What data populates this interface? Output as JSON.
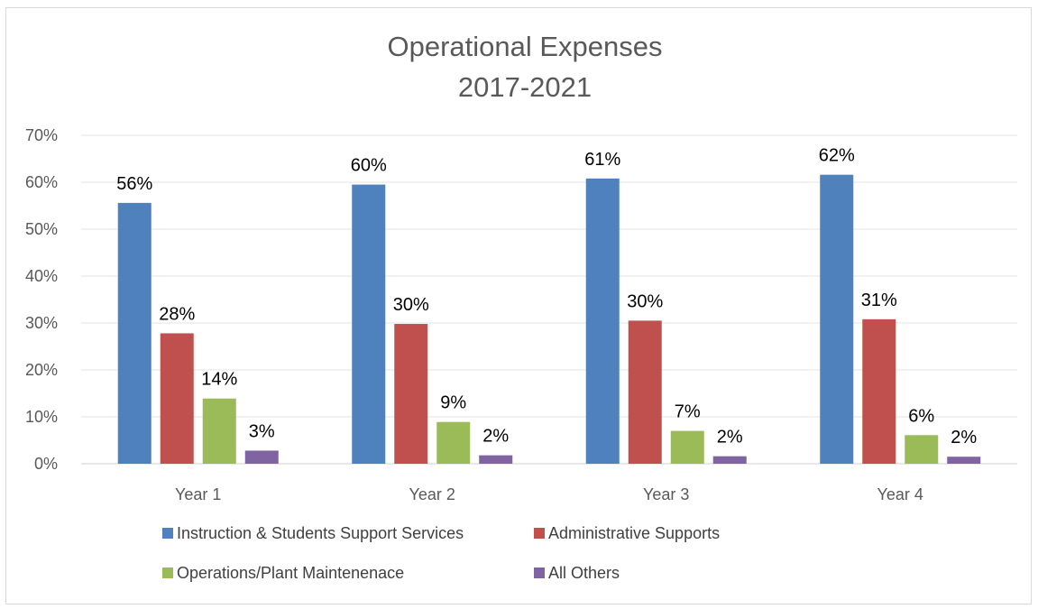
{
  "chart_data": {
    "type": "bar",
    "title": "Operational Expenses",
    "subtitle": "2017-2021",
    "xlabel": "",
    "ylabel": "",
    "categories": [
      "Year 1",
      "Year 2",
      "Year 3",
      "Year 4"
    ],
    "ylim": [
      0,
      70
    ],
    "ytick_labels": [
      "0%",
      "10%",
      "20%",
      "30%",
      "40%",
      "50%",
      "60%",
      "70%"
    ],
    "ytick_values": [
      0,
      10,
      20,
      30,
      40,
      50,
      60,
      70
    ],
    "grid": true,
    "legend_position": "bottom",
    "series": [
      {
        "name": "Instruction & Students Support Services",
        "color": "#4f81bd",
        "values": [
          55.6,
          59.5,
          60.8,
          61.6
        ],
        "labels": [
          "56%",
          "60%",
          "61%",
          "62%"
        ]
      },
      {
        "name": "Administrative Supports",
        "color": "#c0504d",
        "values": [
          27.8,
          29.8,
          30.5,
          30.8
        ],
        "labels": [
          "28%",
          "30%",
          "30%",
          "31%"
        ]
      },
      {
        "name": "Operations/Plant Maintenenace",
        "color": "#9bbb59",
        "values": [
          13.9,
          8.9,
          7.0,
          6.1
        ],
        "labels": [
          "14%",
          "9%",
          "7%",
          "6%"
        ]
      },
      {
        "name": "All Others",
        "color": "#8064a2",
        "values": [
          2.8,
          1.8,
          1.6,
          1.5
        ],
        "labels": [
          "3%",
          "2%",
          "2%",
          "2%"
        ]
      }
    ]
  }
}
